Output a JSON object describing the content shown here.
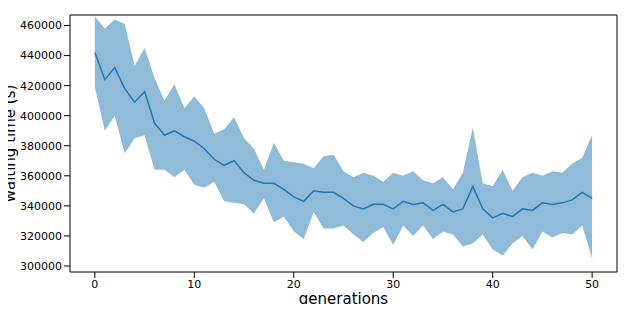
{
  "chart_data": {
    "type": "line",
    "x_label": "generations",
    "y_label": "waiting time (s)",
    "x": [
      0,
      1,
      2,
      3,
      4,
      5,
      6,
      7,
      8,
      9,
      10,
      11,
      12,
      13,
      14,
      15,
      16,
      17,
      18,
      19,
      20,
      21,
      22,
      23,
      24,
      25,
      26,
      27,
      28,
      29,
      30,
      31,
      32,
      33,
      34,
      35,
      36,
      37,
      38,
      39,
      40,
      41,
      42,
      43,
      44,
      45,
      46,
      47,
      48,
      49,
      50
    ],
    "series": [
      {
        "color": "#1f77b4",
        "values": [
          442000,
          424000,
          432000,
          418000,
          409000,
          416000,
          395000,
          387000,
          390000,
          386000,
          383000,
          378000,
          371000,
          367000,
          370000,
          362000,
          357000,
          355000,
          355000,
          351000,
          346000,
          343000,
          350000,
          349000,
          349000,
          345000,
          340000,
          338000,
          341000,
          341000,
          338000,
          343000,
          341000,
          342000,
          337000,
          341000,
          336000,
          338000,
          353000,
          338000,
          332000,
          335000,
          333000,
          338000,
          337000,
          342000,
          341000,
          342000,
          344000,
          349000,
          345000
        ],
        "lower": [
          419000,
          390000,
          400000,
          375000,
          385000,
          387000,
          364000,
          364000,
          359000,
          364000,
          354000,
          352000,
          356000,
          343000,
          342000,
          341000,
          335000,
          345000,
          329000,
          333000,
          323000,
          318000,
          336000,
          325000,
          325000,
          327000,
          321000,
          316000,
          322000,
          326000,
          314000,
          327000,
          320000,
          327000,
          318000,
          323000,
          321000,
          313000,
          315000,
          321000,
          311000,
          307000,
          315000,
          320000,
          311000,
          323000,
          319000,
          322000,
          321000,
          327000,
          305000
        ],
        "upper": [
          466000,
          458000,
          464000,
          461000,
          433000,
          445000,
          425000,
          410000,
          421000,
          405000,
          413000,
          405000,
          388000,
          391000,
          399000,
          385000,
          378000,
          364000,
          382000,
          370000,
          369000,
          368000,
          365000,
          373000,
          374000,
          363000,
          359000,
          362000,
          360000,
          356000,
          362000,
          360000,
          363000,
          357000,
          355000,
          359000,
          351000,
          362000,
          392000,
          355000,
          353000,
          364000,
          350000,
          359000,
          362000,
          360000,
          363000,
          362000,
          368000,
          372000,
          387000
        ]
      }
    ],
    "xlim": [
      -2.5,
      52.5
    ],
    "xticks": [
      0,
      10,
      20,
      30,
      40,
      50
    ],
    "ylim": [
      296000,
      467000
    ],
    "yticks": [
      300000,
      320000,
      340000,
      360000,
      380000,
      400000,
      420000,
      440000,
      460000
    ],
    "grid": false
  }
}
